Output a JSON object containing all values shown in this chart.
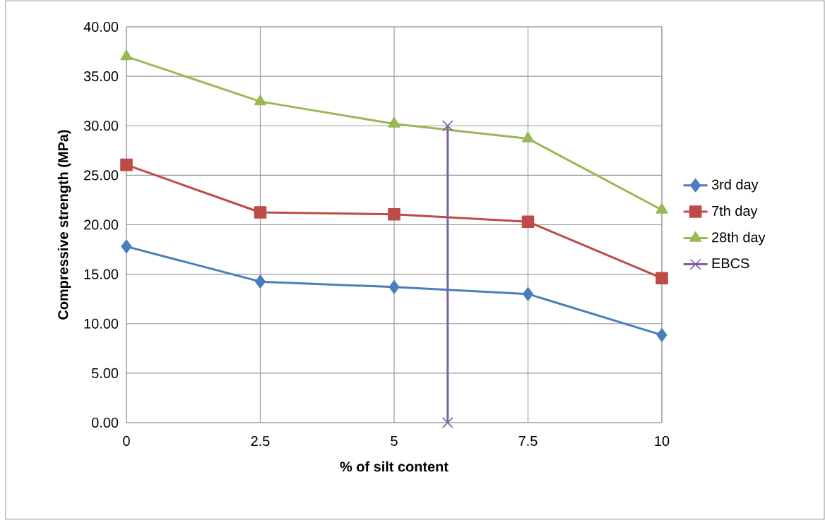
{
  "chart_data": {
    "type": "line",
    "xlabel": "% of silt content",
    "ylabel": "Compressive strength (MPa)",
    "xlim": [
      0,
      10
    ],
    "xticks": [
      0,
      2.5,
      5,
      7.5,
      10
    ],
    "ylim": [
      0,
      40
    ],
    "yticks": [
      {
        "value": 0,
        "label": "0.00"
      },
      {
        "value": 5,
        "label": "5.00"
      },
      {
        "value": 10,
        "label": "10.00"
      },
      {
        "value": 15,
        "label": "15.00"
      },
      {
        "value": 20,
        "label": "20.00"
      },
      {
        "value": 25,
        "label": "25.00"
      },
      {
        "value": 30,
        "label": "30.00"
      },
      {
        "value": 35,
        "label": "35.00"
      },
      {
        "value": 40,
        "label": "40.00"
      }
    ],
    "grid": true,
    "legend": "right",
    "series": [
      {
        "name": "3rd day",
        "color": "#4a7ebb",
        "marker": "diamond",
        "x": [
          0,
          2.5,
          5,
          7.5,
          10
        ],
        "values": [
          17.8,
          14.25,
          13.7,
          13.0,
          8.85
        ]
      },
      {
        "name": "7th day",
        "color": "#be4b48",
        "marker": "square",
        "x": [
          0,
          2.5,
          5,
          7.5,
          10
        ],
        "values": [
          26.05,
          21.25,
          21.05,
          20.3,
          14.6
        ]
      },
      {
        "name": "28th day",
        "color": "#98b954",
        "marker": "triangle",
        "x": [
          0,
          2.5,
          5,
          7.5,
          10
        ],
        "values": [
          37.0,
          32.45,
          30.2,
          28.7,
          21.5
        ]
      },
      {
        "name": "EBCS",
        "color": "#7d60a0",
        "marker": "cross",
        "x": [
          6,
          6
        ],
        "values": [
          30,
          0
        ]
      }
    ]
  }
}
